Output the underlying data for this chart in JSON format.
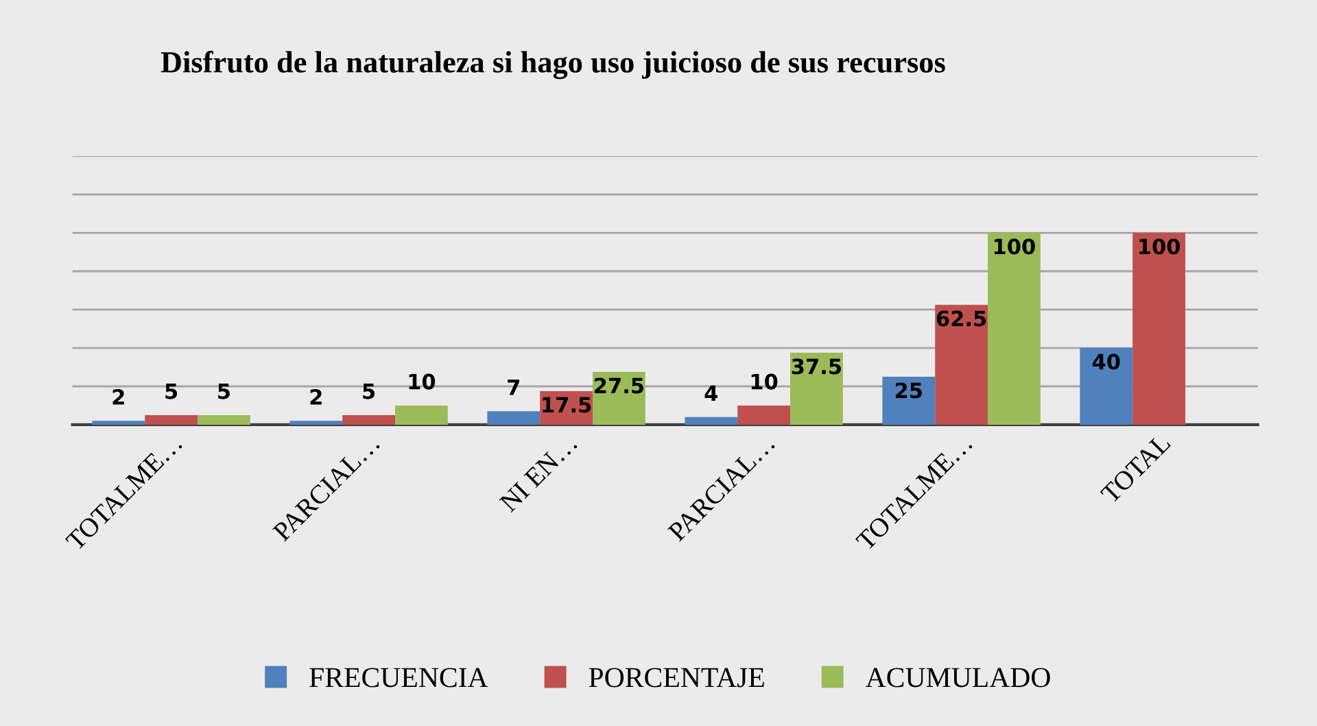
{
  "chart_data": {
    "type": "bar",
    "title": "Disfruto de la naturaleza si hago uso juicioso de sus recursos",
    "categories": [
      "TOTALME…",
      "PARCIAL…",
      "NI EN…",
      "PARCIAL…",
      "TOTALME…",
      "TOTAL"
    ],
    "series": [
      {
        "name": "FRECUENCIA",
        "color": "#4f81bd",
        "values": [
          2,
          2,
          7,
          4,
          25,
          40
        ]
      },
      {
        "name": "PORCENTAJE",
        "color": "#c0504d",
        "values": [
          5,
          5,
          17.5,
          10,
          62.5,
          100
        ]
      },
      {
        "name": "ACUMULADO",
        "color": "#9bbb59",
        "values": [
          5,
          10,
          27.5,
          37.5,
          100,
          null
        ]
      }
    ],
    "ylim": [
      0,
      140
    ],
    "yticks": [
      {
        "value": 0,
        "label": null
      },
      {
        "value": 20,
        "label": null
      },
      {
        "value": 40,
        "label": null
      },
      {
        "value": 60,
        "label": null
      },
      {
        "value": 80,
        "label": null
      },
      {
        "value": 100,
        "label": null
      },
      {
        "value": 120,
        "label": null
      },
      {
        "value": 140,
        "label": null
      }
    ],
    "tick_labels": "x",
    "grid": "y",
    "legend": "bottom",
    "data_labels": true
  }
}
